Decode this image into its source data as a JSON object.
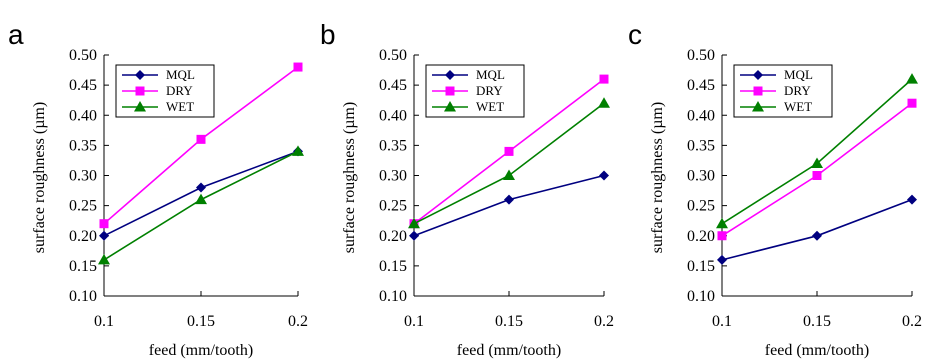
{
  "chart_data": [
    {
      "type": "line",
      "panel_label": "a",
      "xlabel": "feed (mm/tooth)",
      "ylabel": "surface roughness (µm)",
      "x": [
        0.1,
        0.15,
        0.2
      ],
      "x_ticks": [
        "0.1",
        "0.15",
        "0.2"
      ],
      "ylim": [
        0.1,
        0.5
      ],
      "y_ticks": [
        "0.10",
        "0.15",
        "0.20",
        "0.25",
        "0.30",
        "0.35",
        "0.40",
        "0.45",
        "0.50"
      ],
      "grid": false,
      "legend_position": "top-left",
      "series": [
        {
          "name": "MQL",
          "values": [
            0.2,
            0.28,
            0.34
          ],
          "color": "#000080",
          "marker": "diamond"
        },
        {
          "name": "DRY",
          "values": [
            0.22,
            0.36,
            0.48
          ],
          "color": "#ff00ff",
          "marker": "square"
        },
        {
          "name": "WET",
          "values": [
            0.16,
            0.26,
            0.34
          ],
          "color": "#008000",
          "marker": "triangle"
        }
      ]
    },
    {
      "type": "line",
      "panel_label": "b",
      "xlabel": "feed (mm/tooth)",
      "ylabel": "surface roughness (µm)",
      "x": [
        0.1,
        0.15,
        0.2
      ],
      "x_ticks": [
        "0.1",
        "0.15",
        "0.2"
      ],
      "ylim": [
        0.1,
        0.5
      ],
      "y_ticks": [
        "0.10",
        "0.15",
        "0.20",
        "0.25",
        "0.30",
        "0.35",
        "0.40",
        "0.45",
        "0.50"
      ],
      "grid": false,
      "legend_position": "top-left",
      "series": [
        {
          "name": "MQL",
          "values": [
            0.2,
            0.26,
            0.3
          ],
          "color": "#000080",
          "marker": "diamond"
        },
        {
          "name": "DRY",
          "values": [
            0.22,
            0.34,
            0.46
          ],
          "color": "#ff00ff",
          "marker": "square"
        },
        {
          "name": "WET",
          "values": [
            0.22,
            0.3,
            0.42
          ],
          "color": "#008000",
          "marker": "triangle"
        }
      ]
    },
    {
      "type": "line",
      "panel_label": "c",
      "xlabel": "feed (mm/tooth)",
      "ylabel": "surface roughness (µm)",
      "x": [
        0.1,
        0.15,
        0.2
      ],
      "x_ticks": [
        "0.1",
        "0.15",
        "0.2"
      ],
      "ylim": [
        0.1,
        0.5
      ],
      "y_ticks": [
        "0.10",
        "0.15",
        "0.20",
        "0.25",
        "0.30",
        "0.35",
        "0.40",
        "0.45",
        "0.50"
      ],
      "grid": false,
      "legend_position": "top-left",
      "series": [
        {
          "name": "MQL",
          "values": [
            0.16,
            0.2,
            0.26
          ],
          "color": "#000080",
          "marker": "diamond"
        },
        {
          "name": "DRY",
          "values": [
            0.2,
            0.3,
            0.42
          ],
          "color": "#ff00ff",
          "marker": "square"
        },
        {
          "name": "WET",
          "values": [
            0.22,
            0.32,
            0.46
          ],
          "color": "#008000",
          "marker": "triangle"
        }
      ]
    }
  ]
}
